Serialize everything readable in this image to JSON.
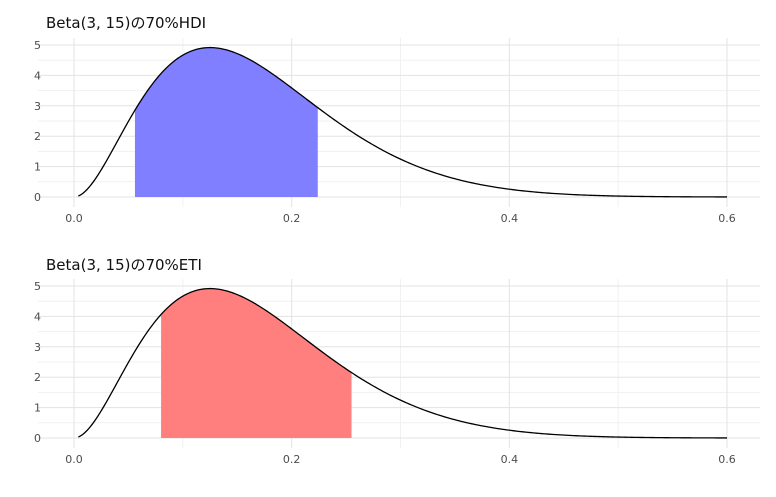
{
  "chart_data": [
    {
      "type": "area",
      "title": "Beta(3, 15)の70%HDI",
      "distribution": {
        "family": "Beta",
        "alpha": 3,
        "beta": 15
      },
      "x_range": [
        0,
        0.6
      ],
      "ylim": [
        0,
        5
      ],
      "x_ticks": [
        "0.0",
        "0.2",
        "0.4",
        "0.6"
      ],
      "y_ticks": [
        "0",
        "1",
        "2",
        "3",
        "4",
        "5"
      ],
      "shaded_interval": [
        0.056,
        0.224
      ],
      "fill_color": "#7f7fff",
      "grid": true
    },
    {
      "type": "area",
      "title": "Beta(3, 15)の70%ETI",
      "distribution": {
        "family": "Beta",
        "alpha": 3,
        "beta": 15
      },
      "x_range": [
        0,
        0.6
      ],
      "ylim": [
        0,
        5
      ],
      "x_ticks": [
        "0.0",
        "0.2",
        "0.4",
        "0.6"
      ],
      "y_ticks": [
        "0",
        "1",
        "2",
        "3",
        "4",
        "5"
      ],
      "shaded_interval": [
        0.08,
        0.255
      ],
      "fill_color": "#ff7f7f",
      "grid": true
    }
  ]
}
